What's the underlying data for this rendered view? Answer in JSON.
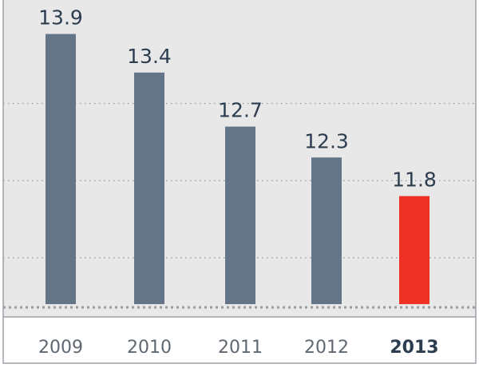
{
  "chart_data": {
    "type": "bar",
    "categories": [
      "2009",
      "2010",
      "2011",
      "2012",
      "2013"
    ],
    "values": [
      13.9,
      13.4,
      12.7,
      12.3,
      11.8
    ],
    "value_labels": [
      "13.9",
      "13.4",
      "12.7",
      "12.3",
      "11.8"
    ],
    "highlight_index": 4,
    "title": "",
    "xlabel": "",
    "ylabel": "",
    "ylim": [
      10.4,
      14.34
    ],
    "grid": true,
    "colors": {
      "background": "#e8e8e8",
      "bar": "#637587",
      "highlight": "#ee3124",
      "label_text": "#2b3d4f",
      "tick_text": "#5f6770",
      "gridline": "#9a9ea3",
      "frame": "#9aa0a6"
    }
  }
}
